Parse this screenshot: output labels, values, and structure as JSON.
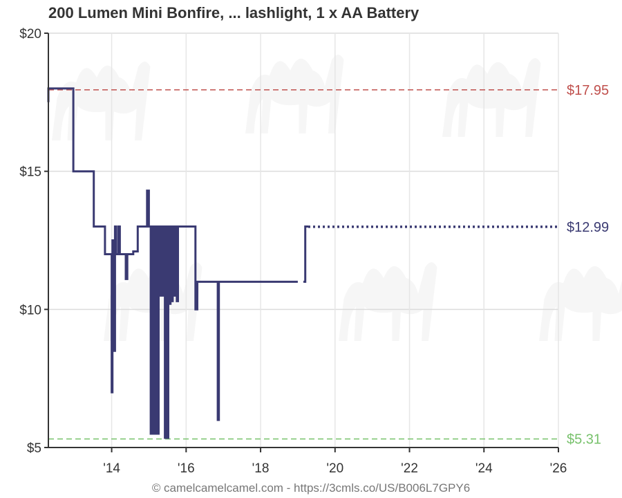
{
  "chart_data": {
    "type": "line",
    "title": "200 Lumen Mini Bonfire, ... lashlight, 1 x AA Battery",
    "ylim": [
      5,
      20
    ],
    "xlim": [
      2012.3,
      2026
    ],
    "y_ticks": [
      {
        "value": 5,
        "label": "$5"
      },
      {
        "value": 10,
        "label": "$10"
      },
      {
        "value": 15,
        "label": "$15"
      },
      {
        "value": 20,
        "label": "$20"
      }
    ],
    "x_ticks": [
      {
        "value": 2014,
        "label": "'14"
      },
      {
        "value": 2016,
        "label": "'16"
      },
      {
        "value": 2018,
        "label": "'18"
      },
      {
        "value": 2020,
        "label": "'20"
      },
      {
        "value": 2022,
        "label": "'22"
      },
      {
        "value": 2024,
        "label": "'24"
      },
      {
        "value": 2026,
        "label": "'26"
      }
    ],
    "grid": true,
    "reference_lines": [
      {
        "label": "$17.95",
        "value": 17.95,
        "color": "#c0504d"
      },
      {
        "label": "$5.31",
        "value": 5.31,
        "color": "#77c16b"
      }
    ],
    "current": {
      "label": "$12.99",
      "value": 12.99,
      "color": "#3a3a72"
    },
    "series": [
      {
        "color": "#3a3a72",
        "points": [
          [
            2012.3,
            17.5
          ],
          [
            2012.3,
            18
          ],
          [
            2012.97,
            18
          ],
          [
            2012.97,
            15
          ],
          [
            2013.52,
            15
          ],
          [
            2013.52,
            13
          ],
          [
            2013.82,
            13
          ],
          [
            2013.82,
            12
          ],
          [
            2014.0,
            12
          ],
          [
            2014.0,
            7
          ],
          [
            2014.02,
            7
          ],
          [
            2014.02,
            12.5
          ],
          [
            2014.06,
            12.5
          ],
          [
            2014.06,
            8.5
          ],
          [
            2014.09,
            8.5
          ],
          [
            2014.09,
            13
          ],
          [
            2014.12,
            13
          ],
          [
            2014.12,
            12
          ],
          [
            2014.18,
            12
          ],
          [
            2014.18,
            13
          ],
          [
            2014.22,
            13
          ],
          [
            2014.22,
            12
          ],
          [
            2014.38,
            12
          ],
          [
            2014.38,
            11.1
          ],
          [
            2014.42,
            11.1
          ],
          [
            2014.42,
            12
          ],
          [
            2014.58,
            12
          ],
          [
            2014.58,
            12.1
          ],
          [
            2014.7,
            12.1
          ],
          [
            2014.7,
            13
          ],
          [
            2014.95,
            13
          ],
          [
            2014.95,
            14.3
          ],
          [
            2015.0,
            14.3
          ],
          [
            2015.0,
            13
          ],
          [
            2015.05,
            13
          ],
          [
            2015.05,
            5.5
          ],
          [
            2015.08,
            5.5
          ],
          [
            2015.08,
            13
          ],
          [
            2015.11,
            13
          ],
          [
            2015.11,
            5.5
          ],
          [
            2015.14,
            5.5
          ],
          [
            2015.14,
            13
          ],
          [
            2015.17,
            13
          ],
          [
            2015.17,
            5.5
          ],
          [
            2015.2,
            5.5
          ],
          [
            2015.2,
            13
          ],
          [
            2015.23,
            13
          ],
          [
            2015.23,
            5.5
          ],
          [
            2015.26,
            5.5
          ],
          [
            2015.26,
            13
          ],
          [
            2015.29,
            13
          ],
          [
            2015.29,
            10.5
          ],
          [
            2015.32,
            10.5
          ],
          [
            2015.32,
            13
          ],
          [
            2015.36,
            13
          ],
          [
            2015.36,
            10.5
          ],
          [
            2015.4,
            10.5
          ],
          [
            2015.4,
            13
          ],
          [
            2015.43,
            13
          ],
          [
            2015.43,
            5.35
          ],
          [
            2015.46,
            5.35
          ],
          [
            2015.46,
            13
          ],
          [
            2015.49,
            13
          ],
          [
            2015.49,
            5.35
          ],
          [
            2015.52,
            5.35
          ],
          [
            2015.52,
            13
          ],
          [
            2015.55,
            13
          ],
          [
            2015.55,
            10.2
          ],
          [
            2015.58,
            10.2
          ],
          [
            2015.58,
            13
          ],
          [
            2015.61,
            13
          ],
          [
            2015.61,
            10.3
          ],
          [
            2015.64,
            10.3
          ],
          [
            2015.64,
            13
          ],
          [
            2015.67,
            13
          ],
          [
            2015.67,
            10.5
          ],
          [
            2015.7,
            10.5
          ],
          [
            2015.7,
            13
          ],
          [
            2015.75,
            13
          ],
          [
            2015.75,
            10.3
          ],
          [
            2015.78,
            10.3
          ],
          [
            2015.78,
            13
          ],
          [
            2016.25,
            13
          ],
          [
            2016.25,
            10
          ],
          [
            2016.3,
            10
          ],
          [
            2016.3,
            11
          ],
          [
            2016.85,
            11
          ],
          [
            2016.85,
            6
          ],
          [
            2016.88,
            6
          ],
          [
            2016.88,
            11
          ],
          [
            2019.0,
            11
          ]
        ]
      },
      {
        "color": "#3a3a72",
        "points": [
          [
            2019.15,
            11
          ],
          [
            2019.2,
            11
          ],
          [
            2019.2,
            13
          ],
          [
            2019.28,
            13
          ]
        ]
      }
    ],
    "projection": {
      "color": "#3a3a72",
      "points": [
        [
          2019.28,
          12.99
        ],
        [
          2026,
          12.99
        ]
      ]
    }
  },
  "footer": "© camelcamelcamel.com - https://3cmls.co/US/B006L7GPY6"
}
